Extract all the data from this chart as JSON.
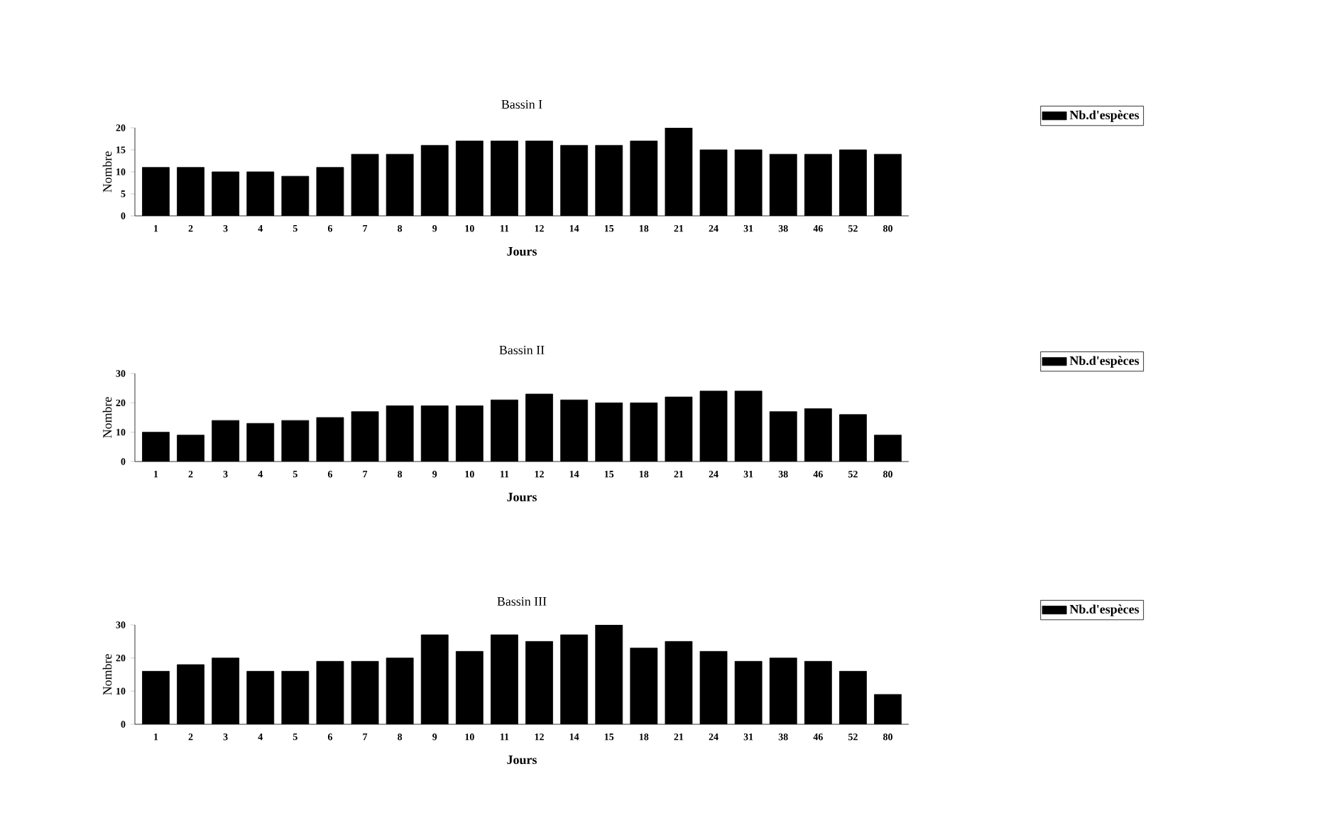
{
  "chart_data": [
    {
      "type": "bar",
      "title": "Bassin I",
      "xlabel": "Jours",
      "ylabel": "Nombre",
      "categories": [
        "1",
        "2",
        "3",
        "4",
        "5",
        "6",
        "7",
        "8",
        "9",
        "10",
        "11",
        "12",
        "14",
        "15",
        "18",
        "21",
        "24",
        "31",
        "38",
        "46",
        "52",
        "80"
      ],
      "ylim": [
        0,
        20
      ],
      "yticks": [
        0,
        5,
        10,
        15,
        20
      ],
      "legend": "right",
      "series": [
        {
          "name": "Nb.d'espèces",
          "color": "#000000",
          "values": [
            11,
            11,
            10,
            10,
            9,
            11,
            14,
            14,
            16,
            17,
            17,
            17,
            16,
            16,
            17,
            20,
            15,
            15,
            14,
            14,
            15,
            14
          ]
        }
      ]
    },
    {
      "type": "bar",
      "title": "Bassin II",
      "xlabel": "Jours",
      "ylabel": "Nombre",
      "categories": [
        "1",
        "2",
        "3",
        "4",
        "5",
        "6",
        "7",
        "8",
        "9",
        "10",
        "11",
        "12",
        "14",
        "15",
        "18",
        "21",
        "24",
        "31",
        "38",
        "46",
        "52",
        "80"
      ],
      "ylim": [
        0,
        30
      ],
      "yticks": [
        0,
        10,
        20,
        30
      ],
      "legend": "right",
      "series": [
        {
          "name": "Nb.d'espèces",
          "color": "#000000",
          "values": [
            10,
            9,
            14,
            13,
            14,
            15,
            17,
            19,
            19,
            19,
            21,
            23,
            21,
            20,
            20,
            22,
            24,
            24,
            17,
            18,
            16,
            9
          ]
        }
      ]
    },
    {
      "type": "bar",
      "title": "Bassin III",
      "xlabel": "Jours",
      "ylabel": "Nombre",
      "categories": [
        "1",
        "2",
        "3",
        "4",
        "5",
        "6",
        "7",
        "8",
        "9",
        "10",
        "11",
        "12",
        "14",
        "15",
        "18",
        "21",
        "24",
        "31",
        "38",
        "46",
        "52",
        "80"
      ],
      "ylim": [
        0,
        30
      ],
      "yticks": [
        0,
        10,
        20,
        30
      ],
      "legend": "right",
      "series": [
        {
          "name": "Nb.d'espèces",
          "color": "#000000",
          "values": [
            16,
            18,
            20,
            16,
            16,
            19,
            19,
            20,
            27,
            22,
            27,
            25,
            27,
            30,
            23,
            25,
            22,
            19,
            20,
            19,
            16,
            9
          ]
        }
      ]
    }
  ]
}
